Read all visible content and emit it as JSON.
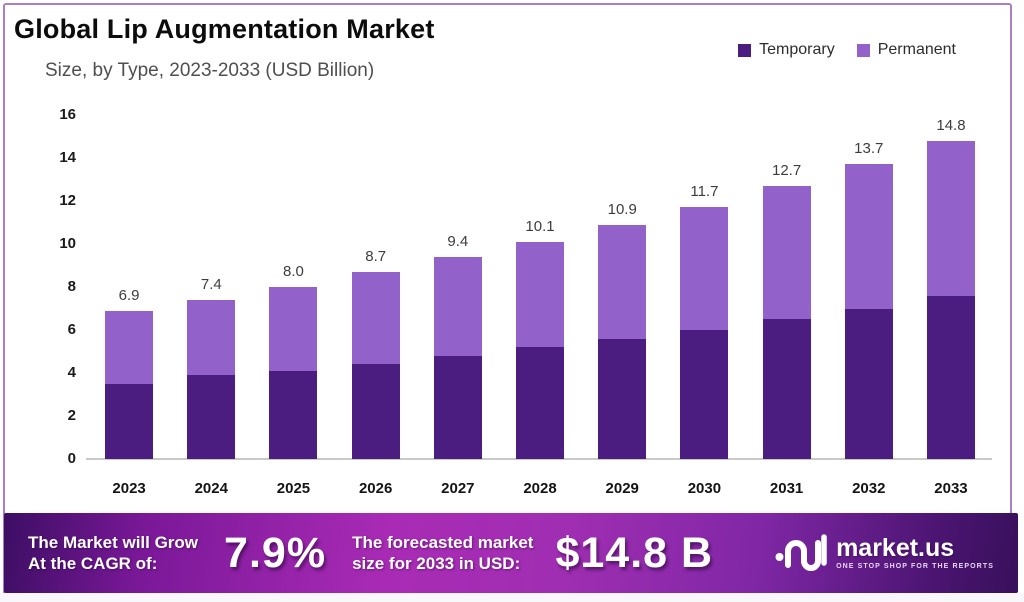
{
  "header": {
    "title": "Global Lip Augmentation Market",
    "subtitle": "Size, by Type, 2023-2033 (USD Billion)"
  },
  "legend": [
    {
      "label": "Temporary",
      "color": "#4c1d80"
    },
    {
      "label": "Permanent",
      "color": "#9261ca"
    }
  ],
  "chart_data": {
    "type": "bar",
    "stacked": true,
    "title": "Global Lip Augmentation Market",
    "subtitle": "Size, by Type, 2023-2033 (USD Billion)",
    "xlabel": "",
    "ylabel": "",
    "units": "USD Billion",
    "categories": [
      "2023",
      "2024",
      "2025",
      "2026",
      "2027",
      "2028",
      "2029",
      "2030",
      "2031",
      "2032",
      "2033"
    ],
    "series": [
      {
        "name": "Temporary",
        "color": "#4c1d80",
        "values": [
          3.5,
          3.9,
          4.1,
          4.4,
          4.8,
          5.2,
          5.6,
          6.0,
          6.5,
          7.0,
          7.6
        ]
      },
      {
        "name": "Permanent",
        "color": "#9261ca",
        "values": [
          3.4,
          3.5,
          3.9,
          4.3,
          4.6,
          4.9,
          5.3,
          5.7,
          6.2,
          6.7,
          7.2
        ]
      }
    ],
    "totals": [
      6.9,
      7.4,
      8.0,
      8.7,
      9.4,
      10.1,
      10.9,
      11.7,
      12.7,
      13.7,
      14.8
    ],
    "total_labels": [
      "6.9",
      "7.4",
      "8.0",
      "8.7",
      "9.4",
      "10.1",
      "10.9",
      "11.7",
      "12.7",
      "13.7",
      "14.8"
    ],
    "ylim": [
      0,
      16
    ],
    "yticks": [
      0,
      2,
      4,
      6,
      8,
      10,
      12,
      14,
      16
    ],
    "grid": false,
    "legend_position": "top-right"
  },
  "banner": {
    "cagr_line1": "The Market will Grow",
    "cagr_line2": "At the CAGR of:",
    "cagr_value": "7.9%",
    "forecast_line1": "The forecasted market",
    "forecast_line2": "size for 2033 in USD:",
    "forecast_value": "$14.8 B",
    "logo_text": "market.us",
    "logo_tagline": "ONE STOP SHOP FOR THE REPORTS"
  },
  "colors": {
    "temporary": "#4c1d80",
    "permanent": "#9261ca",
    "frame_border": "#a87fc6",
    "banner_center": "#a92bb5",
    "banner_edge": "#38105c"
  }
}
